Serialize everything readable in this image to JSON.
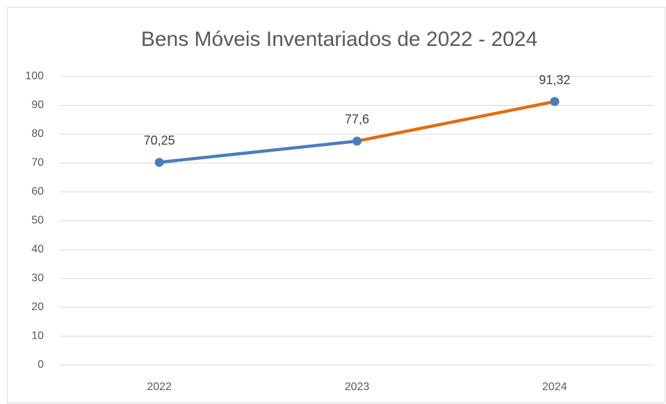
{
  "chart_data": {
    "type": "line",
    "title": "Bens Móveis Inventariados de 2022 - 2024",
    "categories": [
      "2022",
      "2023",
      "2024"
    ],
    "series": [
      {
        "name": "Bens Móveis Inventariados",
        "color": "#4a7ebb",
        "segment_colors": [
          "#4a7ebb",
          "#e36c0a"
        ],
        "values": [
          70.25,
          77.6,
          91.32
        ],
        "value_labels": [
          "70,25",
          "77,6",
          "91,32"
        ]
      }
    ],
    "ylim": [
      0,
      100
    ],
    "yticks": [
      0,
      10,
      20,
      30,
      40,
      50,
      60,
      70,
      80,
      90,
      100
    ],
    "grid": true
  }
}
